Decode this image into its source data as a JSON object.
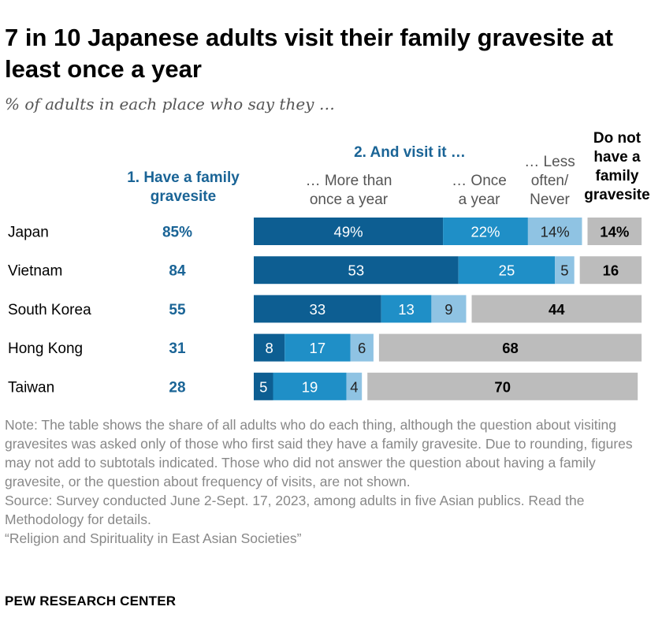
{
  "title": "7 in 10 Japanese adults visit their family gravesite at least once a year",
  "subtitle": "% of adults in each place who say they …",
  "headers": {
    "have": "1. Have a family gravesite",
    "visit": "2. And visit it …",
    "more": "… More than once a year",
    "once": "… Once a year",
    "less": "… Less often/ Never",
    "no": "Do not have a family gravesite"
  },
  "colors": {
    "more": "#0d5e92",
    "once": "#1f8fc7",
    "less": "#8fc3e3",
    "no": "#bcbcbc",
    "have_text": "#1a6496"
  },
  "chart_data": {
    "type": "bar",
    "stacked": true,
    "categories": [
      "Japan",
      "Vietnam",
      "South Korea",
      "Hong Kong",
      "Taiwan"
    ],
    "have_labels": [
      "85%",
      "84",
      "55",
      "31",
      "28"
    ],
    "have_values": [
      85,
      84,
      55,
      31,
      28
    ],
    "series": [
      {
        "name": "… More than once a year",
        "values": [
          49,
          53,
          33,
          8,
          5
        ],
        "labels": [
          "49%",
          "53",
          "33",
          "8",
          "5"
        ]
      },
      {
        "name": "… Once a year",
        "values": [
          22,
          25,
          13,
          17,
          19
        ],
        "labels": [
          "22%",
          "25",
          "13",
          "17",
          "19"
        ]
      },
      {
        "name": "… Less often/ Never",
        "values": [
          14,
          5,
          9,
          6,
          4
        ],
        "labels": [
          "14%",
          "5",
          "9",
          "6",
          "4"
        ]
      }
    ],
    "no_gravesite": {
      "name": "Do not have a family gravesite",
      "values": [
        14,
        16,
        44,
        68,
        70
      ],
      "labels": [
        "14%",
        "16",
        "44",
        "68",
        "70"
      ]
    }
  },
  "note": "Note: The table shows the share of all adults who do each thing, although the question about visiting gravesites was asked only of those who first said they have a family gravesite. Due to rounding, figures may not add to subtotals indicated. Those who did not answer the question about having a family gravesite, or the question about frequency of visits, are not shown.",
  "source": "Source: Survey conducted June 2-Sept. 17, 2023, among adults in five Asian publics. Read the Methodology for details.",
  "report": "“Religion and Spirituality in East Asian Societies”",
  "brand": "PEW RESEARCH CENTER"
}
